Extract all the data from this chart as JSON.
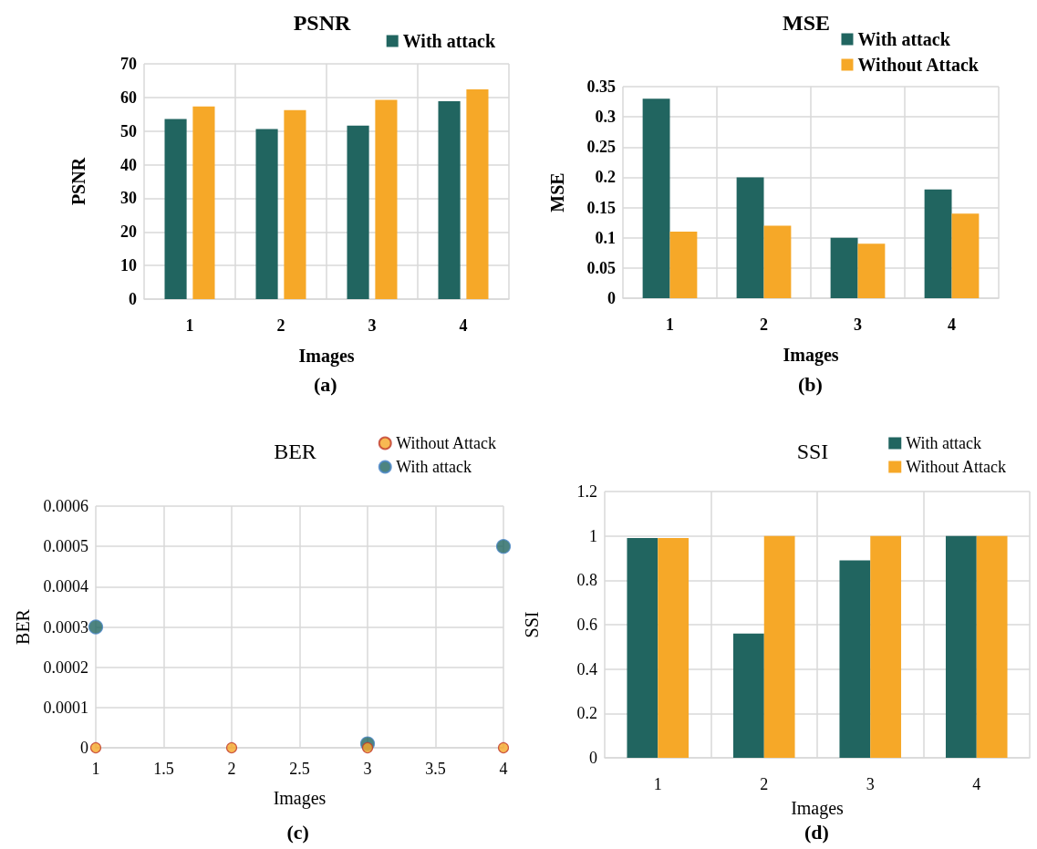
{
  "chart_data": [
    {
      "type": "bar",
      "title": "PSNR",
      "xlabel": "Images",
      "ylabel": "PSNR",
      "annotations": [
        "(a)"
      ],
      "categories": [
        "1",
        "2",
        "3",
        "4"
      ],
      "series": [
        {
          "name": "With attack",
          "color": "#216560",
          "values": [
            53.6,
            50.6,
            51.6,
            58.9
          ]
        },
        {
          "color": "#f6a828",
          "values": [
            57.3,
            56.2,
            59.3,
            62.4
          ]
        }
      ],
      "ylim": [
        0,
        70
      ],
      "yticks": [
        0,
        10,
        20,
        30,
        40,
        50,
        60,
        70
      ],
      "grid": true,
      "legend": "top right"
    },
    {
      "type": "bar",
      "title": "MSE",
      "xlabel": "Images",
      "ylabel": "MSE",
      "annotations": [
        "(b)"
      ],
      "categories": [
        "1",
        "2",
        "3",
        "4"
      ],
      "series": [
        {
          "name": "With attack",
          "color": "#216560",
          "values": [
            0.33,
            0.2,
            0.1,
            0.18
          ]
        },
        {
          "name": "Without Attack",
          "color": "#f6a828",
          "values": [
            0.11,
            0.12,
            0.09,
            0.14
          ]
        }
      ],
      "ylim": [
        0,
        0.35
      ],
      "yticks": [
        0,
        0.05,
        0.1,
        0.15,
        0.2,
        0.25,
        0.3,
        0.35
      ],
      "grid": true,
      "legend": "top right"
    },
    {
      "type": "scatter",
      "title": "BER",
      "xlabel": "Images",
      "ylabel": "BER",
      "annotations": [
        "(c)"
      ],
      "marker": "circle",
      "series": [
        {
          "name": "Without Attack",
          "color": "#f6a828",
          "x": [
            1,
            2,
            3,
            4
          ],
          "values": [
            0,
            0,
            0,
            0
          ]
        },
        {
          "name": "With attack",
          "color": "#216560",
          "x": [
            1,
            2,
            3,
            4
          ],
          "values": [
            0.0003,
            null,
            1e-05,
            0.0005
          ]
        }
      ],
      "xlim": [
        1,
        4
      ],
      "xticks": [
        1,
        1.5,
        2,
        2.5,
        3,
        3.5,
        4
      ],
      "ylim": [
        0,
        0.0006
      ],
      "yticks": [
        0,
        0.0001,
        0.0002,
        0.0003,
        0.0004,
        0.0005,
        0.0006
      ],
      "grid": true,
      "legend": "top right"
    },
    {
      "type": "bar",
      "title": "SSI",
      "xlabel": "Images",
      "ylabel": "SSI",
      "annotations": [
        "(d)"
      ],
      "categories": [
        "1",
        "2",
        "3",
        "4"
      ],
      "series": [
        {
          "name": "With attack",
          "color": "#216560",
          "values": [
            0.99,
            0.56,
            0.89,
            1.0
          ]
        },
        {
          "name": "Without Attack",
          "color": "#f6a828",
          "values": [
            0.99,
            1.0,
            1.0,
            1.0
          ]
        }
      ],
      "ylim": [
        0,
        1.2
      ],
      "yticks": [
        0,
        0.2,
        0.4,
        0.6,
        0.8,
        1,
        1.2
      ],
      "grid": true,
      "legend": "top right"
    }
  ]
}
